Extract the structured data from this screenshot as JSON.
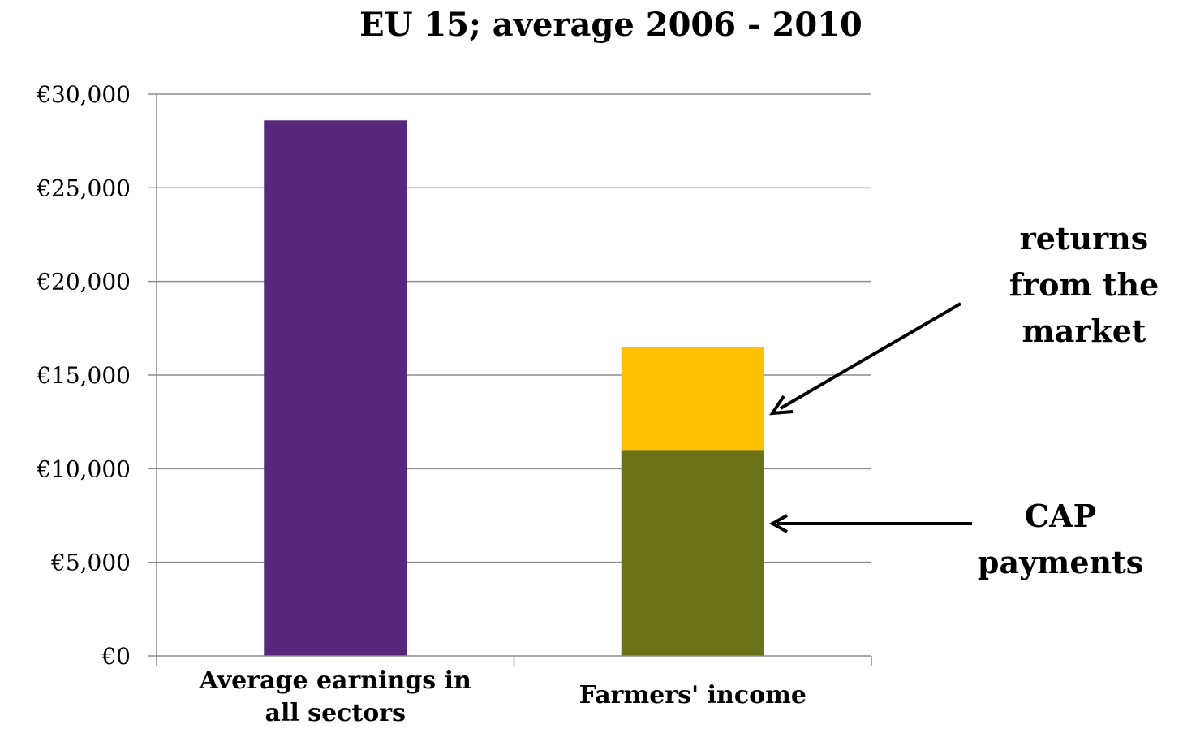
{
  "chart_data": {
    "type": "bar",
    "stacked": true,
    "title": "EU 15; average 2006 - 2010",
    "categories": [
      "Average earnings in all sectors",
      "Farmers' income"
    ],
    "category_lines": [
      [
        "Average earnings in",
        "all sectors"
      ],
      [
        "Farmers' income"
      ]
    ],
    "series": [
      {
        "key": "earnings",
        "values": [
          28600,
          0
        ],
        "color": "#58267b"
      },
      {
        "key": "cap",
        "values": [
          0,
          11000
        ],
        "color": "#6b7116"
      },
      {
        "key": "market",
        "values": [
          0,
          5500
        ],
        "color": "#fec000"
      }
    ],
    "ylim": [
      0,
      30000
    ],
    "yticks": [
      0,
      5000,
      10000,
      15000,
      20000,
      25000,
      30000
    ],
    "ytick_labels": [
      "€0",
      "€5,000",
      "€10,000",
      "€15,000",
      "€20,000",
      "€25,000",
      "€30,000"
    ],
    "grid": true,
    "annotations": [
      {
        "key": "market",
        "lines": [
          "returns",
          "from the",
          "market"
        ],
        "points_to": "Farmers' income / returns from the market segment"
      },
      {
        "key": "cap",
        "lines": [
          "CAP",
          "payments"
        ],
        "points_to": "Farmers' income / CAP payments segment"
      }
    ]
  }
}
